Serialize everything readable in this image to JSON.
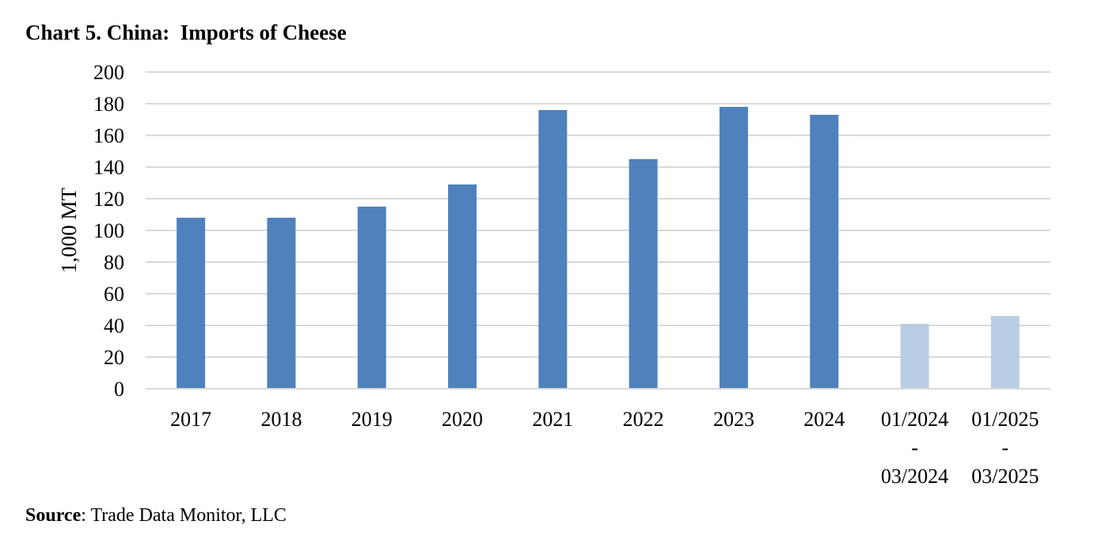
{
  "title": "Chart 5. China:  Imports of Cheese",
  "source": {
    "label": "Source",
    "text": ": Trade Data Monitor, LLC"
  },
  "chart_data": {
    "type": "bar",
    "title": "Chart 5. China:  Imports of Cheese",
    "xlabel": "",
    "ylabel": "1,000 MT",
    "ylim": [
      0,
      200
    ],
    "yticks": [
      0,
      20,
      40,
      60,
      80,
      100,
      120,
      140,
      160,
      180,
      200
    ],
    "grid": true,
    "legend": "none",
    "categories": [
      [
        "2017"
      ],
      [
        "2018"
      ],
      [
        "2019"
      ],
      [
        "2020"
      ],
      [
        "2021"
      ],
      [
        "2022"
      ],
      [
        "2023"
      ],
      [
        "2024"
      ],
      [
        "01/2024",
        "-",
        "03/2024"
      ],
      [
        "01/2025",
        "-",
        "03/2025"
      ]
    ],
    "values": [
      108,
      108,
      115,
      129,
      176,
      145,
      178,
      173,
      41,
      46
    ],
    "colors": {
      "annual": "#4f81bd",
      "partial": "#b9cde5",
      "grid": "#d9d9d9",
      "axis": "#d9d9d9"
    },
    "bar_color_keys": [
      "annual",
      "annual",
      "annual",
      "annual",
      "annual",
      "annual",
      "annual",
      "annual",
      "partial",
      "partial"
    ]
  }
}
